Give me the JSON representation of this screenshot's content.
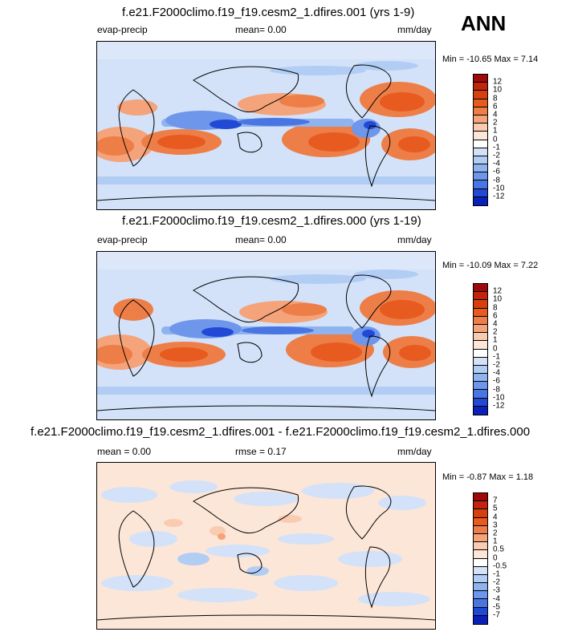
{
  "season": "ANN",
  "panels": [
    {
      "title": "f.e21.F2000climo.f19_f19.cesm2_1.dfires.001 (yrs 1-9)",
      "left_label": "evap-precip",
      "center_label": "mean=  0.00",
      "right_label": "mm/day",
      "minmax": "Min = -10.65 Max =  7.14",
      "levels": [
        "12",
        "10",
        "8",
        "6",
        "4",
        "2",
        "1",
        "0",
        "-1",
        "-2",
        "-4",
        "-6",
        "-8",
        "-10",
        "-12"
      ],
      "colors": [
        "#9e0a0a",
        "#c1250e",
        "#d6400f",
        "#e75b20",
        "#ee7e47",
        "#f4a37a",
        "#f9cbb0",
        "#fce6d8",
        "#ffffff",
        "#d3e2f8",
        "#b2cdf4",
        "#8eb3ef",
        "#6e96ea",
        "#4a76e3",
        "#2149d6",
        "#0b20b8",
        "#061585"
      ]
    },
    {
      "title": "f.e21.F2000climo.f19_f19.cesm2_1.dfires.000 (yrs 1-19)",
      "left_label": "evap-precip",
      "center_label": "mean=  0.00",
      "right_label": "mm/day",
      "minmax": "Min = -10.09 Max =  7.22",
      "levels": [
        "12",
        "10",
        "8",
        "6",
        "4",
        "2",
        "1",
        "0",
        "-1",
        "-2",
        "-4",
        "-6",
        "-8",
        "-10",
        "-12"
      ],
      "colors": [
        "#9e0a0a",
        "#c1250e",
        "#d6400f",
        "#e75b20",
        "#ee7e47",
        "#f4a37a",
        "#f9cbb0",
        "#fce6d8",
        "#ffffff",
        "#d3e2f8",
        "#b2cdf4",
        "#8eb3ef",
        "#6e96ea",
        "#4a76e3",
        "#2149d6",
        "#0b20b8",
        "#061585"
      ]
    },
    {
      "title": "f.e21.F2000climo.f19_f19.cesm2_1.dfires.001 - f.e21.F2000climo.f19_f19.cesm2_1.dfires.000",
      "left_label": "mean =  0.00",
      "center_label": "rmse =  0.17",
      "right_label": "mm/day",
      "minmax": "Min = -0.87 Max =  1.18",
      "levels": [
        "7",
        "5",
        "4",
        "3",
        "2",
        "1",
        "0.5",
        "0",
        "-0.5",
        "-1",
        "-2",
        "-3",
        "-4",
        "-5",
        "-7"
      ],
      "colors": [
        "#9e0a0a",
        "#c1250e",
        "#d6400f",
        "#e75b20",
        "#ee7e47",
        "#f4a37a",
        "#f9cbb0",
        "#fce6d8",
        "#ffffff",
        "#d3e2f8",
        "#b2cdf4",
        "#8eb3ef",
        "#6e96ea",
        "#4a76e3",
        "#2149d6",
        "#0b20b8",
        "#061585"
      ]
    }
  ]
}
